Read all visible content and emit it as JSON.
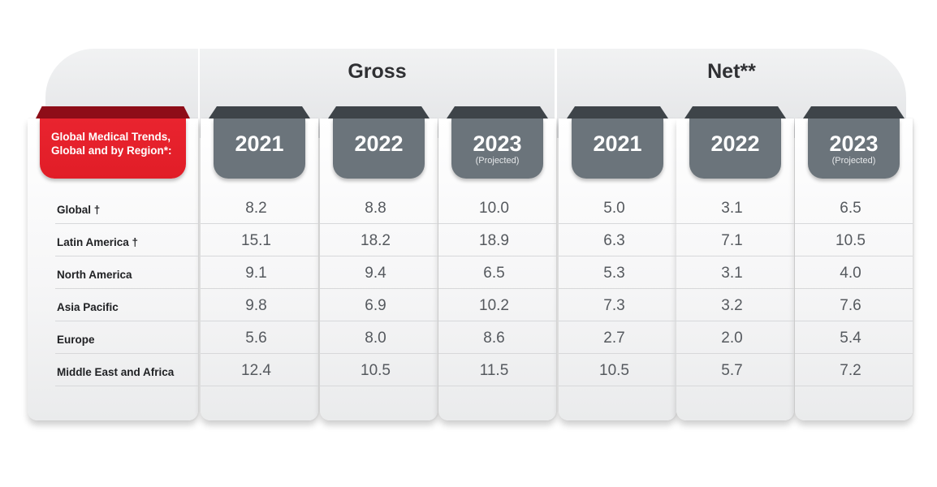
{
  "chart_data": {
    "type": "table",
    "corner_label": "Global Medical Trends, Global and by Region*:",
    "groups": [
      {
        "label": "Gross",
        "columns": [
          {
            "year": "2021",
            "note": ""
          },
          {
            "year": "2022",
            "note": ""
          },
          {
            "year": "2023",
            "note": "(Projected)"
          }
        ]
      },
      {
        "label": "Net**",
        "columns": [
          {
            "year": "2021",
            "note": ""
          },
          {
            "year": "2022",
            "note": ""
          },
          {
            "year": "2023",
            "note": "(Projected)"
          }
        ]
      }
    ],
    "rows": [
      {
        "label": "Global †",
        "values": [
          "8.2",
          "8.8",
          "10.0",
          "5.0",
          "3.1",
          "6.5"
        ]
      },
      {
        "label": "Latin America †",
        "values": [
          "15.1",
          "18.2",
          "18.9",
          "6.3",
          "7.1",
          "10.5"
        ]
      },
      {
        "label": "North America",
        "values": [
          "9.1",
          "9.4",
          "6.5",
          "5.3",
          "3.1",
          "4.0"
        ]
      },
      {
        "label": "Asia Pacific",
        "values": [
          "9.8",
          "6.9",
          "10.2",
          "7.3",
          "3.2",
          "7.6"
        ]
      },
      {
        "label": "Europe",
        "values": [
          "5.6",
          "8.0",
          "8.6",
          "2.7",
          "2.0",
          "5.4"
        ]
      },
      {
        "label": "Middle East and Africa",
        "values": [
          "12.4",
          "10.5",
          "11.5",
          "10.5",
          "5.7",
          "7.2"
        ]
      }
    ]
  },
  "colors": {
    "accent_red": "#e11d27",
    "header_gray": "#6b747b",
    "value_text": "#55595e"
  }
}
